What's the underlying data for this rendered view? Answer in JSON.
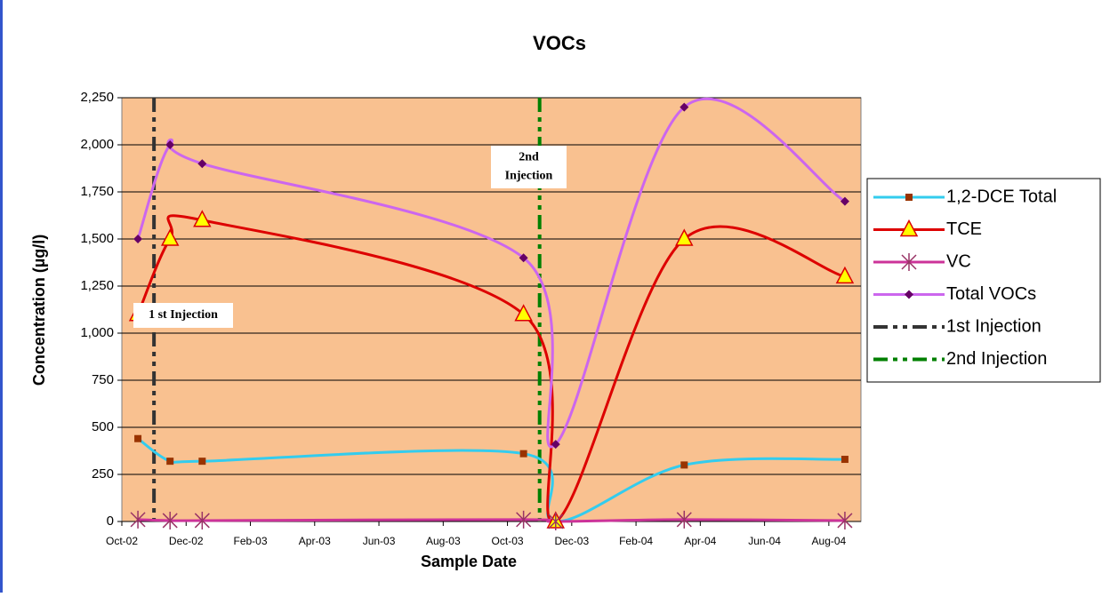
{
  "chart_data": {
    "type": "line",
    "title": "VOCs",
    "x_label": "Sample Date",
    "y_label": "Concentration (µg/l)",
    "x": [
      "2002-10",
      "2002-11",
      "2002-12",
      "2003-10",
      "2003-11",
      "2004-03",
      "2004-08"
    ],
    "xlim": [
      "2002-10",
      "2004-09"
    ],
    "xticks": [
      {
        "value": "2002-10",
        "label": "Oct-02"
      },
      {
        "value": "2002-12",
        "label": "Dec-02"
      },
      {
        "value": "2003-02",
        "label": "Feb-03"
      },
      {
        "value": "2003-04",
        "label": "Apr-03"
      },
      {
        "value": "2003-06",
        "label": "Jun-03"
      },
      {
        "value": "2003-08",
        "label": "Aug-03"
      },
      {
        "value": "2003-10",
        "label": "Oct-03"
      },
      {
        "value": "2003-12",
        "label": "Dec-03"
      },
      {
        "value": "2004-02",
        "label": "Feb-04"
      },
      {
        "value": "2004-04",
        "label": "Apr-04"
      },
      {
        "value": "2004-06",
        "label": "Jun-04"
      },
      {
        "value": "2004-08",
        "label": "Aug-04"
      }
    ],
    "ylim": [
      0,
      2250
    ],
    "yticks": [
      0,
      250,
      500,
      750,
      {
        "value": 1000,
        "label": "1,000"
      },
      {
        "value": 1250,
        "label": "1,250"
      },
      {
        "value": 1500,
        "label": "1,500"
      },
      {
        "value": 1750,
        "label": "1,750"
      },
      {
        "value": 2000,
        "label": "2,000"
      },
      {
        "value": 2250,
        "label": "2,250"
      }
    ],
    "grid": true,
    "background": "#f9c190",
    "series": [
      {
        "name": "1,2-DCE Total",
        "color": "#33ccee",
        "marker": "square",
        "marker_color": "#993300",
        "values": [
          440,
          320,
          320,
          360,
          0,
          300,
          330
        ]
      },
      {
        "name": "TCE",
        "color": "#dd0000",
        "marker": "triangle",
        "marker_color": "#ffff00",
        "values": [
          1100,
          1500,
          1600,
          1100,
          0,
          1500,
          1300
        ]
      },
      {
        "name": "VC",
        "color": "#cc3399",
        "marker": "asterisk",
        "marker_color": "#993366",
        "values": [
          10,
          5,
          5,
          10,
          0,
          10,
          5
        ]
      },
      {
        "name": "Total VOCs",
        "color": "#cc66ee",
        "marker": "diamond",
        "marker_color": "#660066",
        "values": [
          1500,
          2000,
          1900,
          1400,
          410,
          2200,
          1700
        ]
      }
    ],
    "events": [
      {
        "name": "1st Injection",
        "x": "2002-10",
        "color": "#333333",
        "annotation": [
          "1 st Injection"
        ]
      },
      {
        "name": "2nd Injection",
        "x": "2003-10",
        "color": "#008000",
        "annotation": [
          "2nd",
          "Injection"
        ]
      }
    ],
    "legend": "right"
  }
}
